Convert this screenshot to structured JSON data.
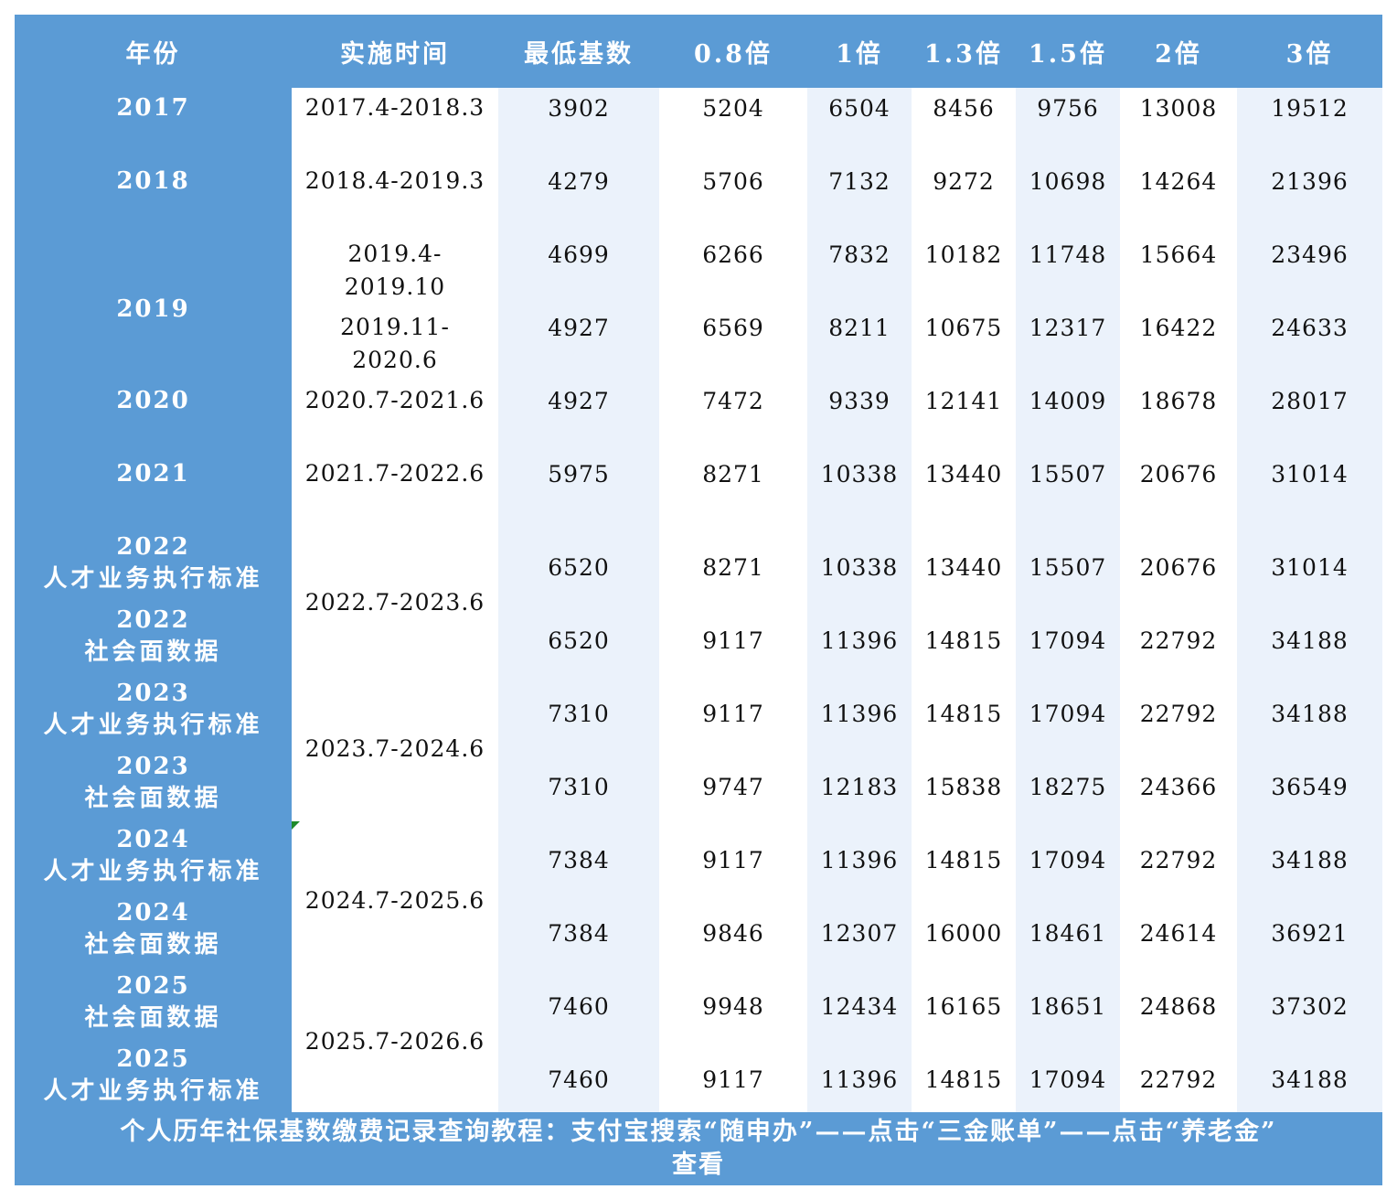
{
  "headers": [
    "年份",
    "实施时间",
    "最低基数",
    "0.8倍",
    "1倍",
    "1.3倍",
    "1.5倍",
    "2倍",
    "3倍"
  ],
  "year_cells": [
    {
      "year": "2017",
      "note": ""
    },
    {
      "year": "2018",
      "note": ""
    },
    {
      "year": "2019",
      "note": ""
    },
    {
      "year": "2020",
      "note": ""
    },
    {
      "year": "2021",
      "note": ""
    },
    {
      "year": "2022",
      "note": "人才业务执行标准"
    },
    {
      "year": "2022",
      "note": "社会面数据"
    },
    {
      "year": "2023",
      "note": "人才业务执行标准"
    },
    {
      "year": "2023",
      "note": "社会面数据"
    },
    {
      "year": "2024",
      "note": "人才业务执行标准"
    },
    {
      "year": "2024",
      "note": "社会面数据"
    },
    {
      "year": "2025",
      "note": "社会面数据"
    },
    {
      "year": "2025",
      "note": "人才业务执行标准"
    }
  ],
  "periods": [
    {
      "line1": "2017.4-2018.3",
      "line2": ""
    },
    {
      "line1": "2018.4-2019.3",
      "line2": ""
    },
    {
      "line1": "2019.4-",
      "line2": "2019.10"
    },
    {
      "line1": "2019.11-",
      "line2": "2020.6"
    },
    {
      "line1": "2020.7-2021.6",
      "line2": ""
    },
    {
      "line1": "2021.7-2022.6",
      "line2": ""
    },
    {
      "line1": "2022.7-2023.6",
      "line2": ""
    },
    {
      "line1": "2023.7-2024.6",
      "line2": ""
    },
    {
      "line1": "2024.7-2025.6",
      "line2": ""
    },
    {
      "line1": "2025.7-2026.6",
      "line2": ""
    }
  ],
  "rows": [
    [
      "3902",
      "5204",
      "6504",
      "8456",
      "9756",
      "13008",
      "19512"
    ],
    [
      "4279",
      "5706",
      "7132",
      "9272",
      "10698",
      "14264",
      "21396"
    ],
    [
      "4699",
      "6266",
      "7832",
      "10182",
      "11748",
      "15664",
      "23496"
    ],
    [
      "4927",
      "6569",
      "8211",
      "10675",
      "12317",
      "16422",
      "24633"
    ],
    [
      "4927",
      "7472",
      "9339",
      "12141",
      "14009",
      "18678",
      "28017"
    ],
    [
      "5975",
      "8271",
      "10338",
      "13440",
      "15507",
      "20676",
      "31014"
    ],
    [
      "6520",
      "8271",
      "10338",
      "13440",
      "15507",
      "20676",
      "31014"
    ],
    [
      "6520",
      "9117",
      "11396",
      "14815",
      "17094",
      "22792",
      "34188"
    ],
    [
      "7310",
      "9117",
      "11396",
      "14815",
      "17094",
      "22792",
      "34188"
    ],
    [
      "7310",
      "9747",
      "12183",
      "15838",
      "18275",
      "24366",
      "36549"
    ],
    [
      "7384",
      "9117",
      "11396",
      "14815",
      "17094",
      "22792",
      "34188"
    ],
    [
      "7384",
      "9846",
      "12307",
      "16000",
      "18461",
      "24614",
      "36921"
    ],
    [
      "7460",
      "9948",
      "12434",
      "16165",
      "18651",
      "24868",
      "37302"
    ],
    [
      "7460",
      "9117",
      "11396",
      "14815",
      "17094",
      "22792",
      "34188"
    ]
  ],
  "footer": {
    "line1": "个人历年社保基数缴费记录查询教程：支付宝搜索“随申办”——点击“三金账单”——点击“养老金”",
    "line2": "查看"
  },
  "colors": {
    "header_blue": "#5b9bd5",
    "tint": "#ebf2fb",
    "marker": "#1e8a2a"
  }
}
